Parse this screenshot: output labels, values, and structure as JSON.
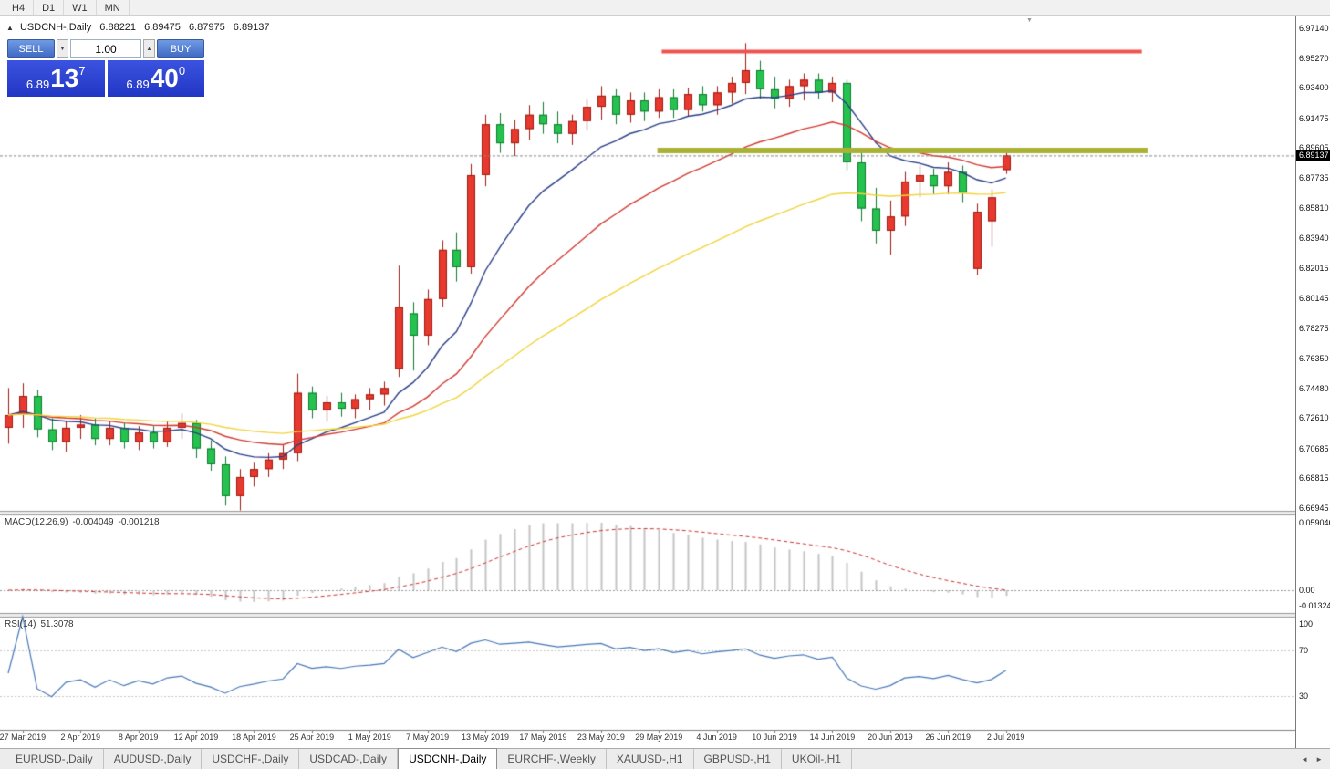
{
  "toolbar": {
    "timeframes": [
      "H4",
      "D1",
      "W1",
      "MN"
    ]
  },
  "icons": {
    "panel_toggle": "▲",
    "spinner_up": "▲",
    "spinner_down": "▼",
    "shift_marker": "▼",
    "tabs_left": "◄",
    "tabs_right": "►"
  },
  "symbol_header": {
    "title": "USDCNH-,Daily",
    "open": "6.88221",
    "high": "6.89475",
    "low": "6.87975",
    "close": "6.89137"
  },
  "trade_panel": {
    "sell_label": "SELL",
    "buy_label": "BUY",
    "volume": "1.00",
    "sell_price": {
      "prefix": "6.89",
      "big": "13",
      "sup": "7"
    },
    "buy_price": {
      "prefix": "6.89",
      "big": "40",
      "sup": "0"
    }
  },
  "macd_panel": {
    "label": "MACD(12,26,9)",
    "value_main": "-0.004049",
    "value_signal": "-0.001218",
    "axis": {
      "top": "0.059046",
      "zero": "0.00",
      "bottom": "-0.013246"
    }
  },
  "rsi_panel": {
    "label": "RSI(14)",
    "value": "51.3078",
    "axis": [
      "100",
      "70",
      "30"
    ],
    "levels": [
      70,
      30
    ]
  },
  "tabs": {
    "items": [
      "EURUSD-,Daily",
      "AUDUSD-,Daily",
      "USDCHF-,Daily",
      "USDCAD-,Daily",
      "USDCNH-,Daily",
      "EURCHF-,Weekly",
      "XAUUSD-,H1",
      "GBPUSD-,H1",
      "UKOil-,H1"
    ],
    "active_index": 4
  },
  "chart_data": {
    "type": "candlestick",
    "title": "USDCNH-,Daily",
    "y_axis": {
      "top": 6.9714,
      "bottom": 6.66945,
      "ticks": [
        "6.97140",
        "6.95270",
        "6.93400",
        "6.91475",
        "6.89605",
        "6.87735",
        "6.85810",
        "6.83940",
        "6.82015",
        "6.80145",
        "6.78275",
        "6.76350",
        "6.74480",
        "6.72610",
        "6.70685",
        "6.68815",
        "6.66945"
      ],
      "current": "6.89137",
      "current_value": 6.89137
    },
    "x_labels": [
      "27 Mar 2019",
      "2 Apr 2019",
      "8 Apr 2019",
      "12 Apr 2019",
      "18 Apr 2019",
      "25 Apr 2019",
      "1 May 2019",
      "7 May 2019",
      "13 May 2019",
      "17 May 2019",
      "23 May 2019",
      "29 May 2019",
      "4 Jun 2019",
      "10 Jun 2019",
      "14 Jun 2019",
      "20 Jun 2019",
      "26 Jun 2019",
      "2 Jul 2019"
    ],
    "label_start_index": 1,
    "label_step": 4,
    "up_color": "#e8392e",
    "up_border": "#9e1a10",
    "down_color": "#26c24f",
    "down_border": "#0f7a2e",
    "moving_averages": [
      {
        "period": 10,
        "color": "#2b3f87"
      },
      {
        "period": 22,
        "color": "#d23a32"
      },
      {
        "period": 45,
        "color": "#f2d43c"
      }
    ],
    "resistance_line": {
      "price": 6.9567,
      "color": "#ef5350",
      "start_bar": 45.2,
      "end_bar": 78.4,
      "thickness": 4
    },
    "support_line": {
      "price": 6.8945,
      "color": "#a9b234",
      "start_bar": 44.9,
      "end_bar": 78.8,
      "thickness": 6
    },
    "ohlc": [
      [
        6.72,
        6.745,
        6.71,
        6.728
      ],
      [
        6.728,
        6.748,
        6.72,
        6.74
      ],
      [
        6.74,
        6.744,
        6.714,
        6.719
      ],
      [
        6.719,
        6.726,
        6.706,
        6.711
      ],
      [
        6.711,
        6.724,
        6.705,
        6.72
      ],
      [
        6.72,
        6.728,
        6.713,
        6.722
      ],
      [
        6.722,
        6.726,
        6.709,
        6.713
      ],
      [
        6.713,
        6.724,
        6.709,
        6.72
      ],
      [
        6.72,
        6.723,
        6.707,
        6.711
      ],
      [
        6.711,
        6.721,
        6.706,
        6.717
      ],
      [
        6.717,
        6.721,
        6.707,
        6.711
      ],
      [
        6.711,
        6.724,
        6.708,
        6.72
      ],
      [
        6.72,
        6.729,
        6.713,
        6.723
      ],
      [
        6.723,
        6.725,
        6.701,
        6.707
      ],
      [
        6.707,
        6.712,
        6.693,
        6.697
      ],
      [
        6.697,
        6.702,
        6.671,
        6.677
      ],
      [
        6.677,
        6.694,
        6.668,
        6.689
      ],
      [
        6.689,
        6.698,
        6.683,
        6.694
      ],
      [
        6.694,
        6.704,
        6.689,
        6.7
      ],
      [
        6.7,
        6.709,
        6.694,
        6.704
      ],
      [
        6.704,
        6.754,
        6.699,
        6.742
      ],
      [
        6.742,
        6.746,
        6.726,
        6.731
      ],
      [
        6.731,
        6.74,
        6.724,
        6.736
      ],
      [
        6.736,
        6.742,
        6.727,
        6.732
      ],
      [
        6.732,
        6.741,
        6.726,
        6.738
      ],
      [
        6.738,
        6.745,
        6.731,
        6.741
      ],
      [
        6.741,
        6.749,
        6.734,
        6.745
      ],
      [
        6.757,
        6.822,
        6.752,
        6.796
      ],
      [
        6.792,
        6.799,
        6.756,
        6.778
      ],
      [
        6.778,
        6.807,
        6.772,
        6.801
      ],
      [
        6.801,
        6.838,
        6.796,
        6.832
      ],
      [
        6.832,
        6.843,
        6.812,
        6.821
      ],
      [
        6.821,
        6.886,
        6.817,
        6.879
      ],
      [
        6.879,
        6.917,
        6.872,
        6.911
      ],
      [
        6.911,
        6.918,
        6.893,
        6.899
      ],
      [
        6.899,
        6.914,
        6.891,
        6.908
      ],
      [
        6.908,
        6.923,
        6.901,
        6.917
      ],
      [
        6.917,
        6.925,
        6.905,
        6.911
      ],
      [
        6.911,
        6.919,
        6.899,
        6.905
      ],
      [
        6.905,
        6.917,
        6.898,
        6.913
      ],
      [
        6.913,
        6.927,
        6.907,
        6.922
      ],
      [
        6.922,
        6.935,
        6.914,
        6.929
      ],
      [
        6.929,
        6.933,
        6.911,
        6.917
      ],
      [
        6.917,
        6.931,
        6.912,
        6.926
      ],
      [
        6.926,
        6.931,
        6.913,
        6.919
      ],
      [
        6.919,
        6.933,
        6.915,
        6.928
      ],
      [
        6.928,
        6.933,
        6.915,
        6.92
      ],
      [
        6.92,
        6.934,
        6.916,
        6.93
      ],
      [
        6.93,
        6.935,
        6.919,
        6.923
      ],
      [
        6.923,
        6.935,
        6.917,
        6.931
      ],
      [
        6.931,
        6.941,
        6.924,
        6.937
      ],
      [
        6.937,
        6.962,
        6.93,
        6.945
      ],
      [
        6.945,
        6.951,
        6.927,
        6.933
      ],
      [
        6.933,
        6.941,
        6.921,
        6.927
      ],
      [
        6.927,
        6.939,
        6.922,
        6.935
      ],
      [
        6.935,
        6.943,
        6.926,
        6.939
      ],
      [
        6.939,
        6.943,
        6.927,
        6.931
      ],
      [
        6.931,
        6.941,
        6.925,
        6.937
      ],
      [
        6.937,
        6.939,
        6.882,
        6.887
      ],
      [
        6.887,
        6.893,
        6.85,
        6.858
      ],
      [
        6.858,
        6.871,
        6.836,
        6.844
      ],
      [
        6.844,
        6.863,
        6.829,
        6.853
      ],
      [
        6.853,
        6.881,
        6.847,
        6.875
      ],
      [
        6.875,
        6.885,
        6.865,
        6.879
      ],
      [
        6.879,
        6.883,
        6.867,
        6.872
      ],
      [
        6.872,
        6.887,
        6.867,
        6.881
      ],
      [
        6.881,
        6.885,
        6.862,
        6.868
      ],
      [
        6.82,
        6.861,
        6.816,
        6.856
      ],
      [
        6.85,
        6.87,
        6.834,
        6.865
      ],
      [
        6.88221,
        6.89475,
        6.87975,
        6.89137
      ]
    ],
    "indicators": [
      {
        "name": "MACD",
        "params": [
          12,
          26,
          9
        ],
        "histogram_color": "#c4c4c4",
        "signal_color": "#cc3333"
      },
      {
        "name": "RSI",
        "params": [
          14
        ],
        "line_color": "#4878b8"
      }
    ]
  }
}
